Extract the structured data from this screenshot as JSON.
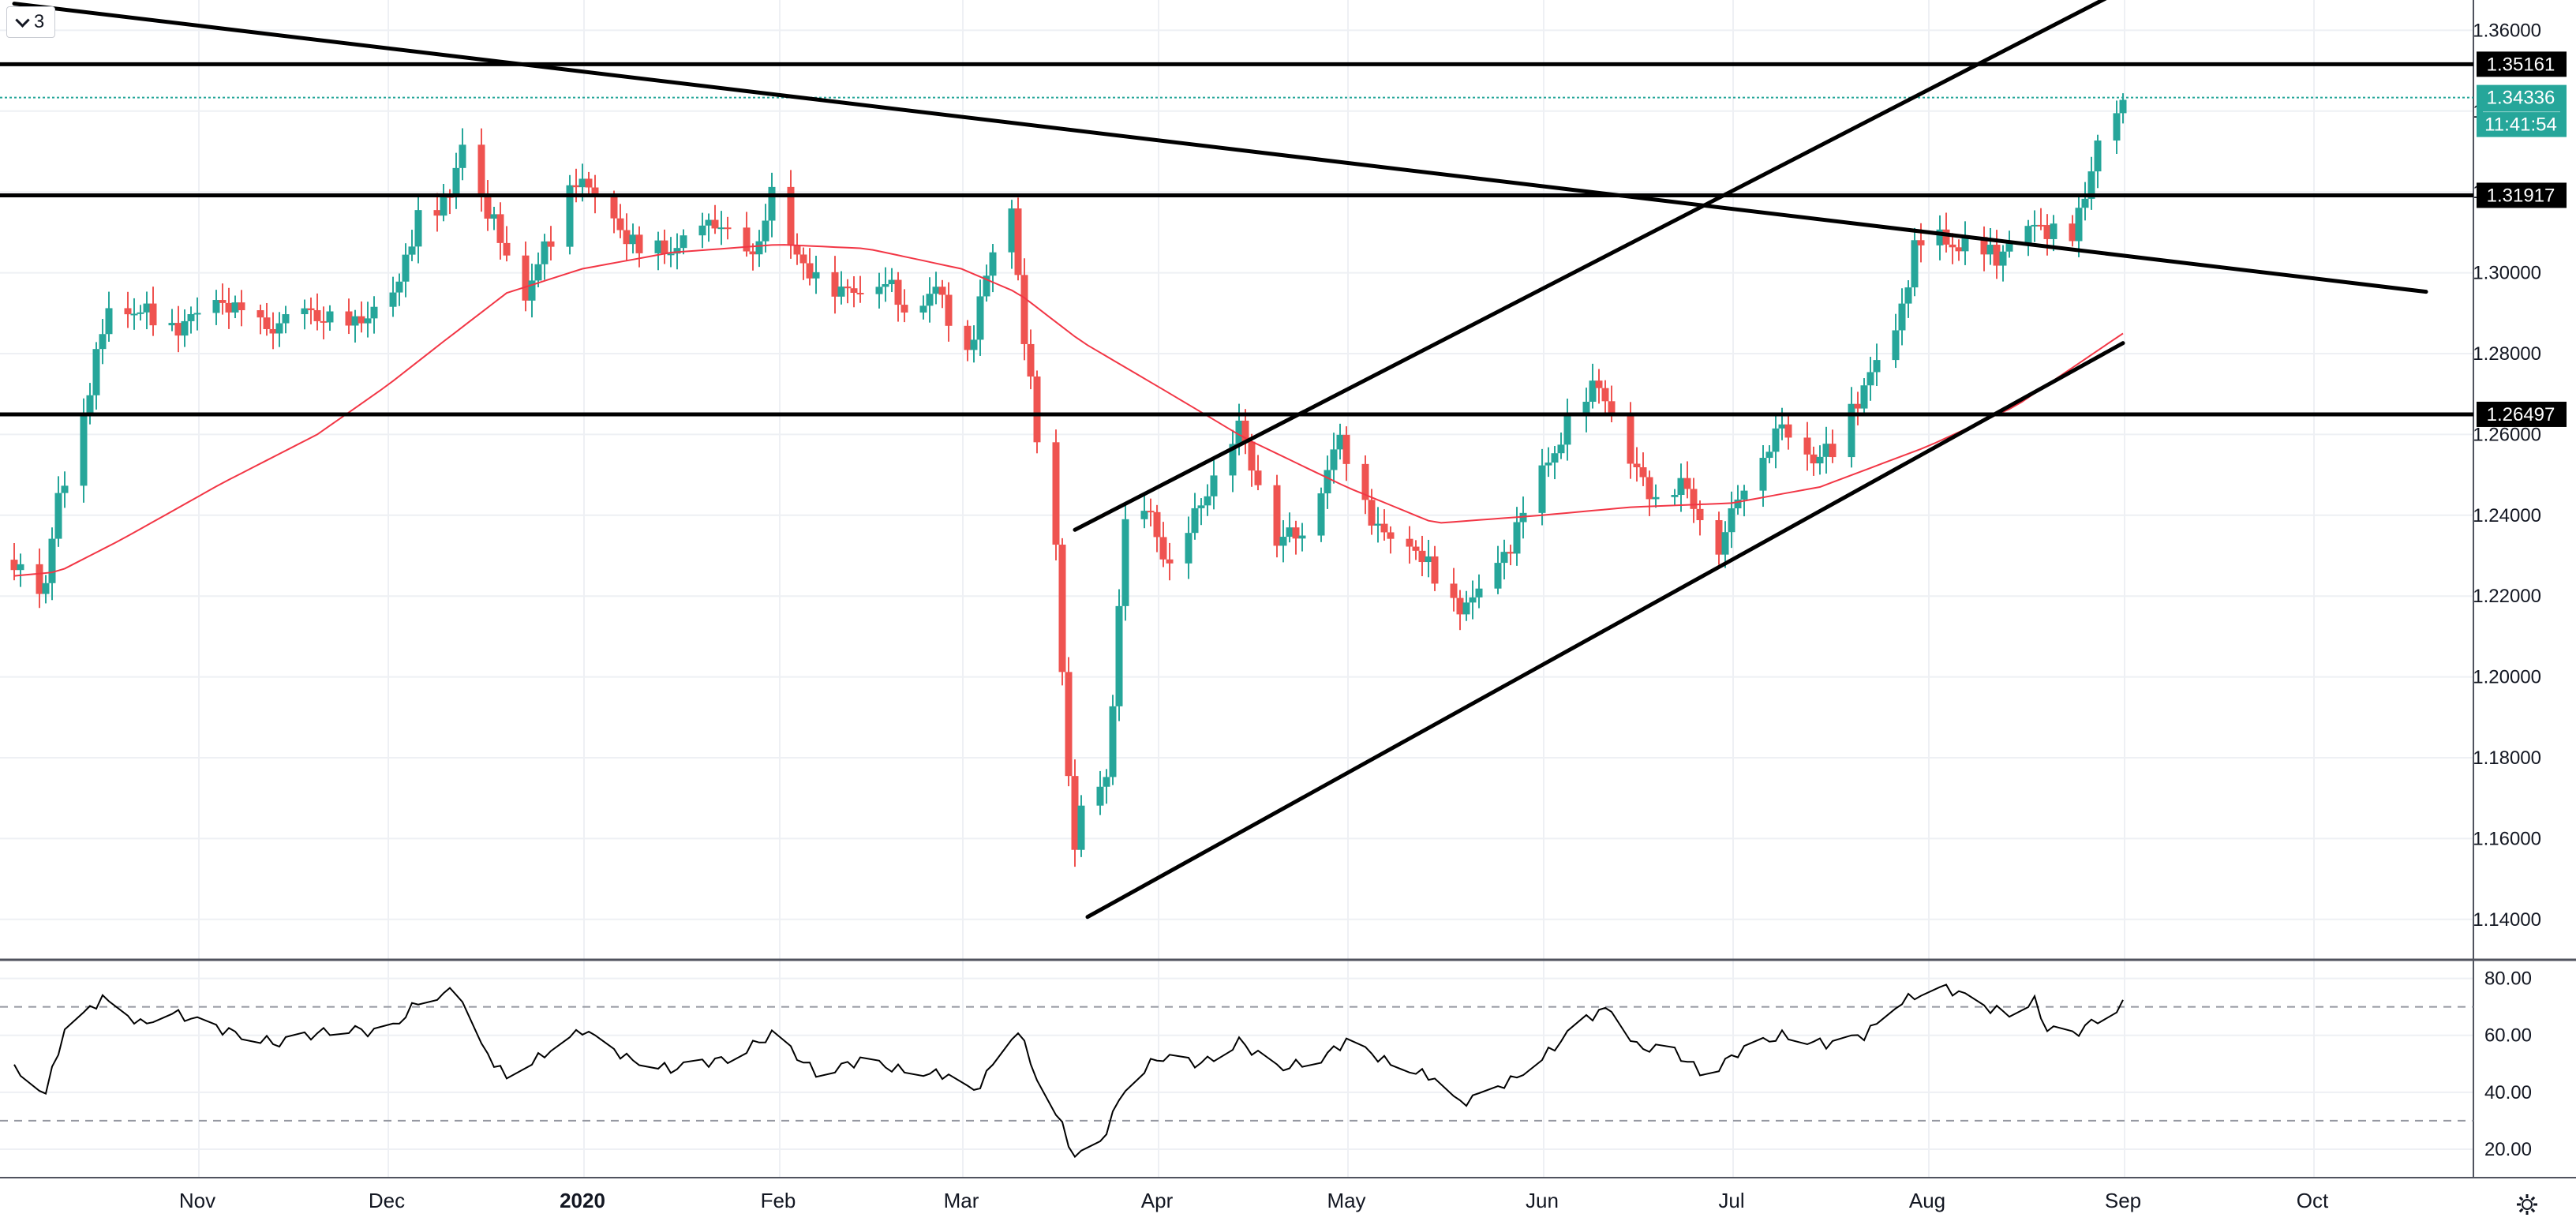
{
  "toolbar": {
    "indicator_count": "3"
  },
  "colors": {
    "up": "#26a69a",
    "down": "#ef5350",
    "ma": "#f23645",
    "line": "#000000",
    "rsi": "#000000",
    "price_tag": "#26a69a",
    "level_tag": "#000000"
  },
  "icons": {
    "collapse": "chevron-down-icon",
    "settings": "gear-icon"
  },
  "chart_data": {
    "type": "candlestick",
    "title": "",
    "price_axis": {
      "range": [
        1.13,
        1.3675
      ],
      "ticks": [
        "1.36000",
        "1.34000",
        "1.32000",
        "1.30000",
        "1.28000",
        "1.26000",
        "1.24000",
        "1.22000",
        "1.20000",
        "1.18000",
        "1.16000",
        "1.14000"
      ]
    },
    "date_axis": {
      "labels": [
        {
          "text": "Nov",
          "date": "2019-11-01",
          "bold": false
        },
        {
          "text": "Dec",
          "date": "2019-12-01",
          "bold": false
        },
        {
          "text": "2020",
          "date": "2020-01-01",
          "bold": true
        },
        {
          "text": "Feb",
          "date": "2020-02-01",
          "bold": false
        },
        {
          "text": "Mar",
          "date": "2020-03-01",
          "bold": false
        },
        {
          "text": "Apr",
          "date": "2020-04-01",
          "bold": false
        },
        {
          "text": "May",
          "date": "2020-05-01",
          "bold": false
        },
        {
          "text": "Jun",
          "date": "2020-06-01",
          "bold": false
        },
        {
          "text": "Jul",
          "date": "2020-07-01",
          "bold": false
        },
        {
          "text": "Aug",
          "date": "2020-08-01",
          "bold": false
        },
        {
          "text": "Sep",
          "date": "2020-09-01",
          "bold": false
        },
        {
          "text": "Oct",
          "date": "2020-10-01",
          "bold": false
        }
      ]
    },
    "horizontal_levels": [
      "1.35161",
      "1.31917",
      "1.26497"
    ],
    "current_price": {
      "value": "1.34336",
      "countdown": "11:41:54"
    },
    "trendlines": [
      {
        "name": "descending resistance",
        "start": [
          "2019-10-03",
          1.3666
        ],
        "end": [
          "2020-10-19",
          1.2953
        ]
      },
      {
        "name": "channel top",
        "start": [
          "2020-03-19",
          1.2364
        ],
        "end": [
          "2020-08-31",
          1.3693
        ]
      },
      {
        "name": "channel bottom",
        "start": [
          "2020-03-21",
          1.1406
        ],
        "end": [
          "2020-09-01",
          1.2826
        ]
      }
    ],
    "candles_keypoints": [
      [
        "2019-10-03",
        1.229
      ],
      [
        "2019-10-08",
        1.222
      ],
      [
        "2019-10-10",
        1.245
      ],
      [
        "2019-10-14",
        1.265
      ],
      [
        "2019-10-18",
        1.292
      ],
      [
        "2019-10-24",
        1.29
      ],
      [
        "2019-10-28",
        1.286
      ],
      [
        "2019-11-05",
        1.293
      ],
      [
        "2019-11-12",
        1.286
      ],
      [
        "2019-11-18",
        1.29
      ],
      [
        "2019-11-26",
        1.287
      ],
      [
        "2019-12-03",
        1.297
      ],
      [
        "2019-12-06",
        1.315
      ],
      [
        "2019-12-11",
        1.318
      ],
      [
        "2019-12-13",
        1.334
      ],
      [
        "2019-12-17",
        1.315
      ],
      [
        "2019-12-23",
        1.295
      ],
      [
        "2019-12-27",
        1.309
      ],
      [
        "2019-12-31",
        1.324
      ],
      [
        "2020-01-06",
        1.313
      ],
      [
        "2020-01-10",
        1.305
      ],
      [
        "2020-01-16",
        1.306
      ],
      [
        "2020-01-22",
        1.313
      ],
      [
        "2020-01-28",
        1.303
      ],
      [
        "2020-01-31",
        1.32
      ],
      [
        "2020-02-04",
        1.303
      ],
      [
        "2020-02-11",
        1.295
      ],
      [
        "2020-02-18",
        1.298
      ],
      [
        "2020-02-21",
        1.291
      ],
      [
        "2020-02-26",
        1.296
      ],
      [
        "2020-03-02",
        1.28
      ],
      [
        "2020-03-06",
        1.305
      ],
      [
        "2020-03-09",
        1.316
      ],
      [
        "2020-03-11",
        1.284
      ],
      [
        "2020-03-13",
        1.259
      ],
      [
        "2020-03-16",
        1.23
      ],
      [
        "2020-03-18",
        1.176
      ],
      [
        "2020-03-19",
        1.157
      ],
      [
        "2020-03-20",
        1.166
      ],
      [
        "2020-03-24",
        1.174
      ],
      [
        "2020-03-27",
        1.238
      ],
      [
        "2020-03-31",
        1.24
      ],
      [
        "2020-04-03",
        1.226
      ],
      [
        "2020-04-08",
        1.243
      ],
      [
        "2020-04-14",
        1.262
      ],
      [
        "2020-04-20",
        1.234
      ],
      [
        "2020-04-24",
        1.236
      ],
      [
        "2020-04-30",
        1.259
      ],
      [
        "2020-05-06",
        1.236
      ],
      [
        "2020-05-12",
        1.232
      ],
      [
        "2020-05-18",
        1.217
      ],
      [
        "2020-05-22",
        1.22
      ],
      [
        "2020-05-26",
        1.23
      ],
      [
        "2020-06-01",
        1.25
      ],
      [
        "2020-06-05",
        1.262
      ],
      [
        "2020-06-10",
        1.273
      ],
      [
        "2020-06-15",
        1.253
      ],
      [
        "2020-06-19",
        1.244
      ],
      [
        "2020-06-23",
        1.248
      ],
      [
        "2020-06-29",
        1.232
      ],
      [
        "2020-07-03",
        1.248
      ],
      [
        "2020-07-09",
        1.262
      ],
      [
        "2020-07-14",
        1.254
      ],
      [
        "2020-07-17",
        1.256
      ],
      [
        "2020-07-22",
        1.272
      ],
      [
        "2020-07-27",
        1.285
      ],
      [
        "2020-07-30",
        1.306
      ],
      [
        "2020-08-03",
        1.308
      ],
      [
        "2020-08-07",
        1.306
      ],
      [
        "2020-08-12",
        1.304
      ],
      [
        "2020-08-17",
        1.311
      ],
      [
        "2020-08-20",
        1.311
      ],
      [
        "2020-08-24",
        1.31
      ],
      [
        "2020-08-26",
        1.318
      ],
      [
        "2020-08-28",
        1.334
      ],
      [
        "2020-09-01",
        1.343
      ]
    ],
    "moving_average_keypoints": [
      [
        "2019-10-03",
        1.225
      ],
      [
        "2019-10-10",
        1.226
      ],
      [
        "2019-10-20",
        1.234
      ],
      [
        "2019-11-05",
        1.248
      ],
      [
        "2019-11-20",
        1.26
      ],
      [
        "2019-12-01",
        1.272
      ],
      [
        "2019-12-10",
        1.283
      ],
      [
        "2019-12-20",
        1.295
      ],
      [
        "2020-01-01",
        1.301
      ],
      [
        "2020-01-15",
        1.305
      ],
      [
        "2020-02-01",
        1.307
      ],
      [
        "2020-02-15",
        1.306
      ],
      [
        "2020-03-01",
        1.301
      ],
      [
        "2020-03-10",
        1.295
      ],
      [
        "2020-03-20",
        1.283
      ],
      [
        "2020-04-01",
        1.272
      ],
      [
        "2020-04-15",
        1.259
      ],
      [
        "2020-05-01",
        1.247
      ],
      [
        "2020-05-15",
        1.238
      ],
      [
        "2020-06-01",
        1.24
      ],
      [
        "2020-06-15",
        1.242
      ],
      [
        "2020-07-01",
        1.243
      ],
      [
        "2020-07-15",
        1.247
      ],
      [
        "2020-08-01",
        1.257
      ],
      [
        "2020-08-15",
        1.267
      ],
      [
        "2020-09-01",
        1.285
      ]
    ],
    "rsi": {
      "range": [
        10,
        86
      ],
      "ticks": [
        "80.00",
        "60.00",
        "40.00",
        "20.00"
      ],
      "bands": [
        70,
        30
      ],
      "keypoints": [
        [
          "2019-10-03",
          48
        ],
        [
          "2019-10-08",
          40
        ],
        [
          "2019-10-11",
          62
        ],
        [
          "2019-10-17",
          73
        ],
        [
          "2019-10-23",
          64
        ],
        [
          "2019-10-28",
          68
        ],
        [
          "2019-11-05",
          62
        ],
        [
          "2019-11-14",
          57
        ],
        [
          "2019-11-24",
          63
        ],
        [
          "2019-12-01",
          60
        ],
        [
          "2019-12-06",
          72
        ],
        [
          "2019-12-12",
          76
        ],
        [
          "2019-12-16",
          56
        ],
        [
          "2019-12-20",
          45
        ],
        [
          "2019-12-25",
          52
        ],
        [
          "2020-01-01",
          62
        ],
        [
          "2020-01-08",
          52
        ],
        [
          "2020-01-15",
          48
        ],
        [
          "2020-01-24",
          52
        ],
        [
          "2020-01-31",
          60
        ],
        [
          "2020-02-07",
          47
        ],
        [
          "2020-02-14",
          51
        ],
        [
          "2020-02-20",
          48
        ],
        [
          "2020-02-28",
          46
        ],
        [
          "2020-03-03",
          40
        ],
        [
          "2020-03-10",
          62
        ],
        [
          "2020-03-13",
          45
        ],
        [
          "2020-03-17",
          28
        ],
        [
          "2020-03-19",
          17
        ],
        [
          "2020-03-23",
          22
        ],
        [
          "2020-03-27",
          42
        ],
        [
          "2020-04-01",
          52
        ],
        [
          "2020-04-08",
          50
        ],
        [
          "2020-04-14",
          58
        ],
        [
          "2020-04-20",
          48
        ],
        [
          "2020-04-27",
          52
        ],
        [
          "2020-05-01",
          58
        ],
        [
          "2020-05-08",
          50
        ],
        [
          "2020-05-15",
          45
        ],
        [
          "2020-05-19",
          36
        ],
        [
          "2020-05-27",
          44
        ],
        [
          "2020-06-01",
          52
        ],
        [
          "2020-06-08",
          66
        ],
        [
          "2020-06-12",
          70
        ],
        [
          "2020-06-16",
          56
        ],
        [
          "2020-06-22",
          54
        ],
        [
          "2020-06-27",
          46
        ],
        [
          "2020-07-02",
          54
        ],
        [
          "2020-07-09",
          60
        ],
        [
          "2020-07-16",
          57
        ],
        [
          "2020-07-22",
          60
        ],
        [
          "2020-07-28",
          72
        ],
        [
          "2020-08-03",
          77
        ],
        [
          "2020-08-06",
          75
        ],
        [
          "2020-08-10",
          70
        ],
        [
          "2020-08-14",
          68
        ],
        [
          "2020-08-18",
          72
        ],
        [
          "2020-08-20",
          62
        ],
        [
          "2020-08-24",
          60
        ],
        [
          "2020-08-28",
          66
        ],
        [
          "2020-09-01",
          71
        ]
      ]
    }
  }
}
